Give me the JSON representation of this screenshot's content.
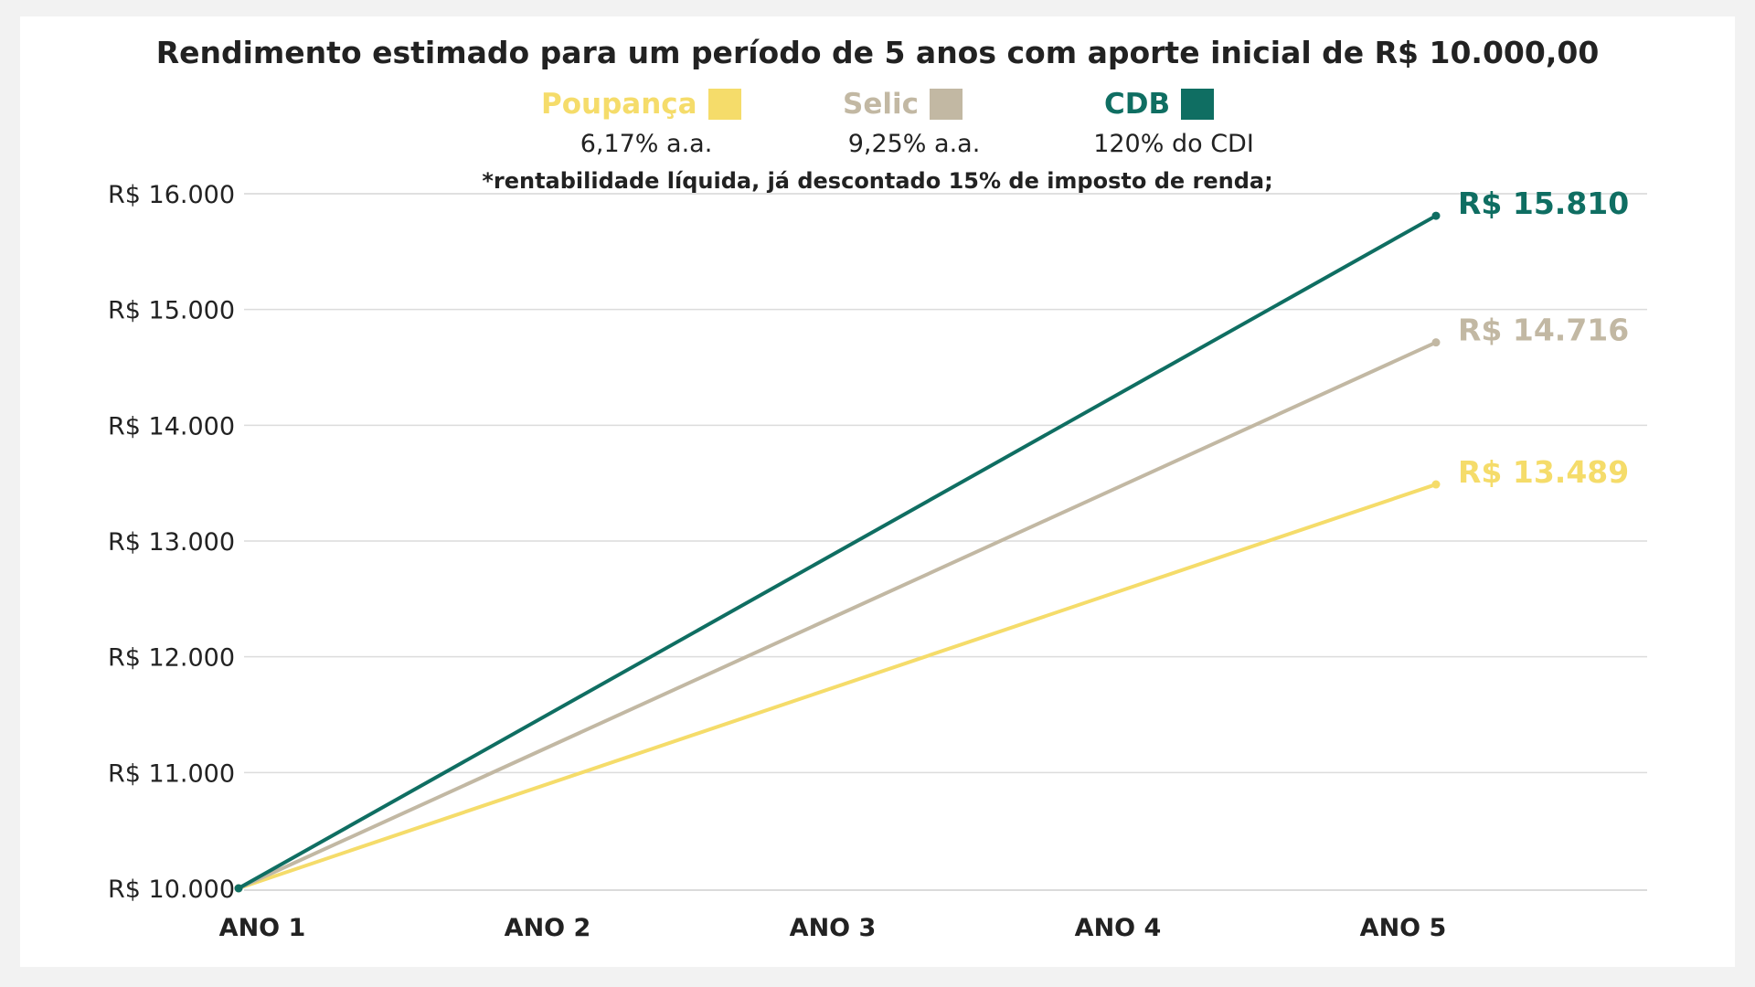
{
  "chart_data": {
    "type": "line",
    "title": "Rendimento estimado para um período de 5 anos com aporte inicial de R$ 10.000,00",
    "footnote": "*rentabilidade líquida, já descontado 15% de imposto de renda;",
    "categories": [
      "ANO 1",
      "ANO 2",
      "ANO 3",
      "ANO 4",
      "ANO 5"
    ],
    "y_ticks": [
      "R$ 10.000",
      "R$ 11.000",
      "R$ 12.000",
      "R$ 13.000",
      "R$ 14.000",
      "R$ 15.000",
      "R$ 16.000"
    ],
    "ylim": [
      10000,
      16000
    ],
    "grid": true,
    "legend_position": "top-center",
    "series": [
      {
        "name": "Poupança",
        "rate": "6,17% a.a.",
        "color": "#f5dc6a",
        "start": {
          "x": "ANO 1",
          "y": 10000
        },
        "end": {
          "x": "ANO 5",
          "y": 13489
        },
        "end_label": "R$ 13.489"
      },
      {
        "name": "Selic",
        "rate": "9,25% a.a.",
        "color": "#c2b8a3",
        "start": {
          "x": "ANO 1",
          "y": 10000
        },
        "end": {
          "x": "ANO 5",
          "y": 14716
        },
        "end_label": "R$ 14.716"
      },
      {
        "name": "CDB",
        "rate": "120% do CDI",
        "color": "#0f6e62",
        "start": {
          "x": "ANO 1",
          "y": 10000
        },
        "end": {
          "x": "ANO 5",
          "y": 15810
        },
        "end_label": "R$ 15.810"
      }
    ]
  }
}
